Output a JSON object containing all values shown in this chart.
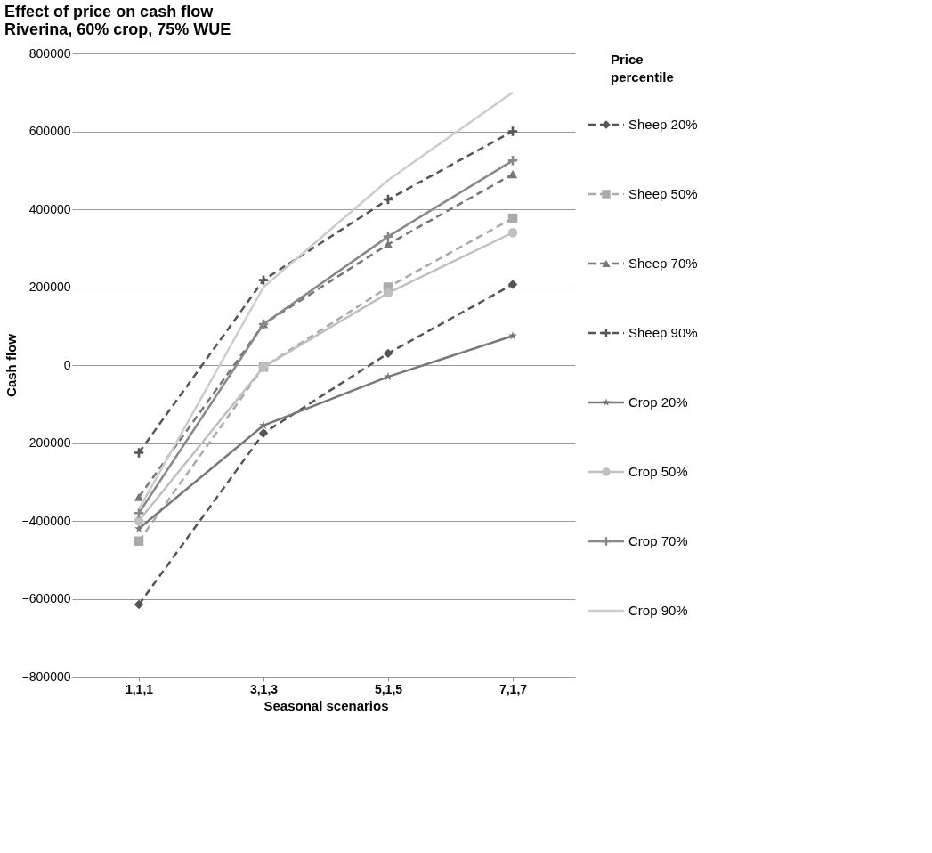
{
  "chart_data": {
    "type": "line",
    "title": "Effect of price on cash flow\nRiverina, 60% crop, 75% WUE",
    "xlabel": "Seasonal scenarios",
    "ylabel": "Cash flow",
    "legend_title": "Price percentile",
    "categories": [
      "1,1,1",
      "3,1,3",
      "5,1,5",
      "7,1,7"
    ],
    "ylim": [
      -800000,
      800000
    ],
    "yticks": [
      -800000,
      -600000,
      -400000,
      -200000,
      0,
      200000,
      400000,
      600000,
      800000
    ],
    "grid": "y",
    "legend": "right",
    "series": [
      {
        "name": "Sheep 20%",
        "color": "#555555",
        "line_style": "dashed",
        "marker": "diamond",
        "values": [
          -615000,
          -175000,
          30000,
          207000
        ]
      },
      {
        "name": "Sheep 50%",
        "color": "#aaaaaa",
        "line_style": "dashed",
        "marker": "square",
        "values": [
          -452000,
          -5000,
          200000,
          377000
        ]
      },
      {
        "name": "Sheep 70%",
        "color": "#777777",
        "line_style": "dashed",
        "marker": "triangle",
        "values": [
          -339000,
          105000,
          310000,
          490000
        ]
      },
      {
        "name": "Sheep 90%",
        "color": "#555555",
        "line_style": "dashed",
        "marker": "cross",
        "values": [
          -225000,
          218000,
          425000,
          600000
        ]
      },
      {
        "name": "Crop 20%",
        "color": "#777777",
        "line_style": "solid",
        "marker": "star",
        "values": [
          -420000,
          -155000,
          -30000,
          75000
        ]
      },
      {
        "name": "Crop 50%",
        "color": "#c0c0c0",
        "line_style": "solid",
        "marker": "circle",
        "values": [
          -400000,
          -5000,
          185000,
          340000
        ]
      },
      {
        "name": "Crop 70%",
        "color": "#888888",
        "line_style": "solid",
        "marker": "cross",
        "values": [
          -380000,
          105000,
          330000,
          525000
        ]
      },
      {
        "name": "Crop 90%",
        "color": "#cccccc",
        "line_style": "solid",
        "marker": "none",
        "values": [
          -370000,
          200000,
          475000,
          700000
        ]
      }
    ]
  }
}
